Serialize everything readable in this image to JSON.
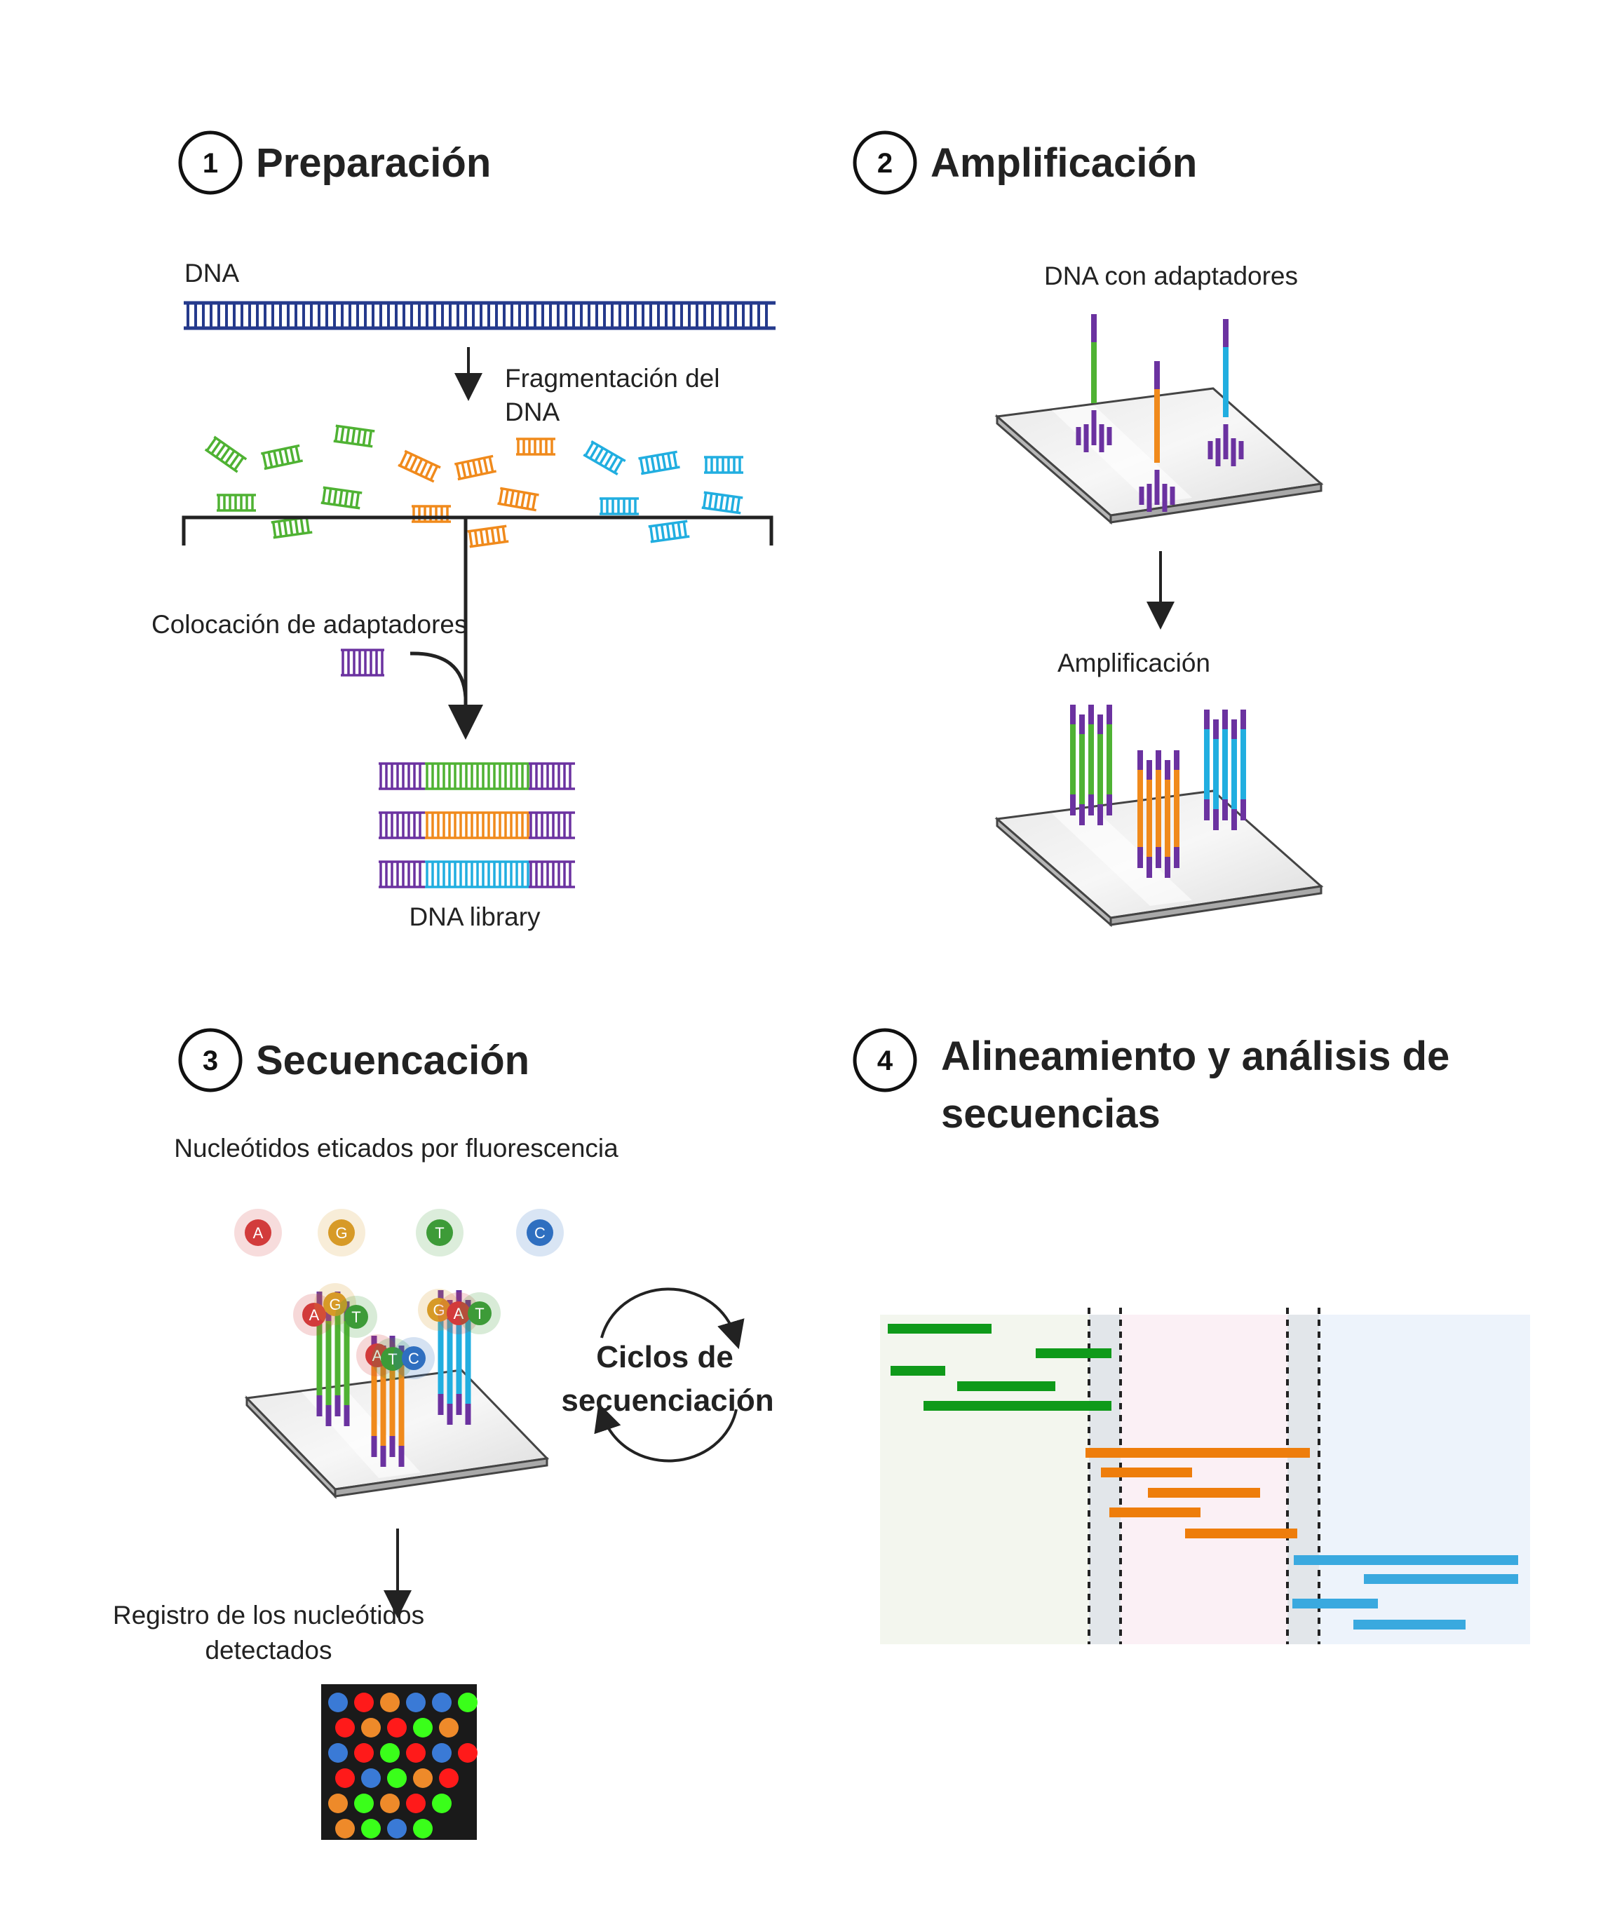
{
  "colors": {
    "green": "#4fb233",
    "orange": "#f08a1c",
    "blue": "#21aee0",
    "purple": "#6b32a0",
    "navy": "#253a8c",
    "align_green": "#0f9a1a",
    "align_orange": "#ee7d0b",
    "align_blue": "#3aa9df"
  },
  "steps": [
    {
      "number": "1",
      "title": "Preparación"
    },
    {
      "number": "2",
      "title": "Amplificación"
    },
    {
      "number": "3",
      "title": "Secuencación"
    },
    {
      "number": "4",
      "title_line1": "Alineamiento y análisis de",
      "title_line2": "secuencias"
    }
  ],
  "prep": {
    "dna_label": "DNA",
    "frag_label_1": "Fragmentación del",
    "frag_label_2": "DNA",
    "adapter_label": "Colocación de adaptadores",
    "library_label": "DNA library"
  },
  "amp": {
    "adapters_label": "DNA con adaptadores",
    "amp_label": "Amplificación"
  },
  "seq": {
    "fluor_label": "Nucleótidos eticados por fluorescencia",
    "nucleotides": [
      {
        "letter": "A",
        "color": "#d23b3b"
      },
      {
        "letter": "G",
        "color": "#d79a27"
      },
      {
        "letter": "T",
        "color": "#3d9b38"
      },
      {
        "letter": "C",
        "color": "#2f6fc0"
      }
    ],
    "cycles_label_1": "Ciclos de",
    "cycles_label_2": "secuenciación",
    "record_label_1": "Registro de los nucleótidos",
    "record_label_2": "detectados"
  }
}
